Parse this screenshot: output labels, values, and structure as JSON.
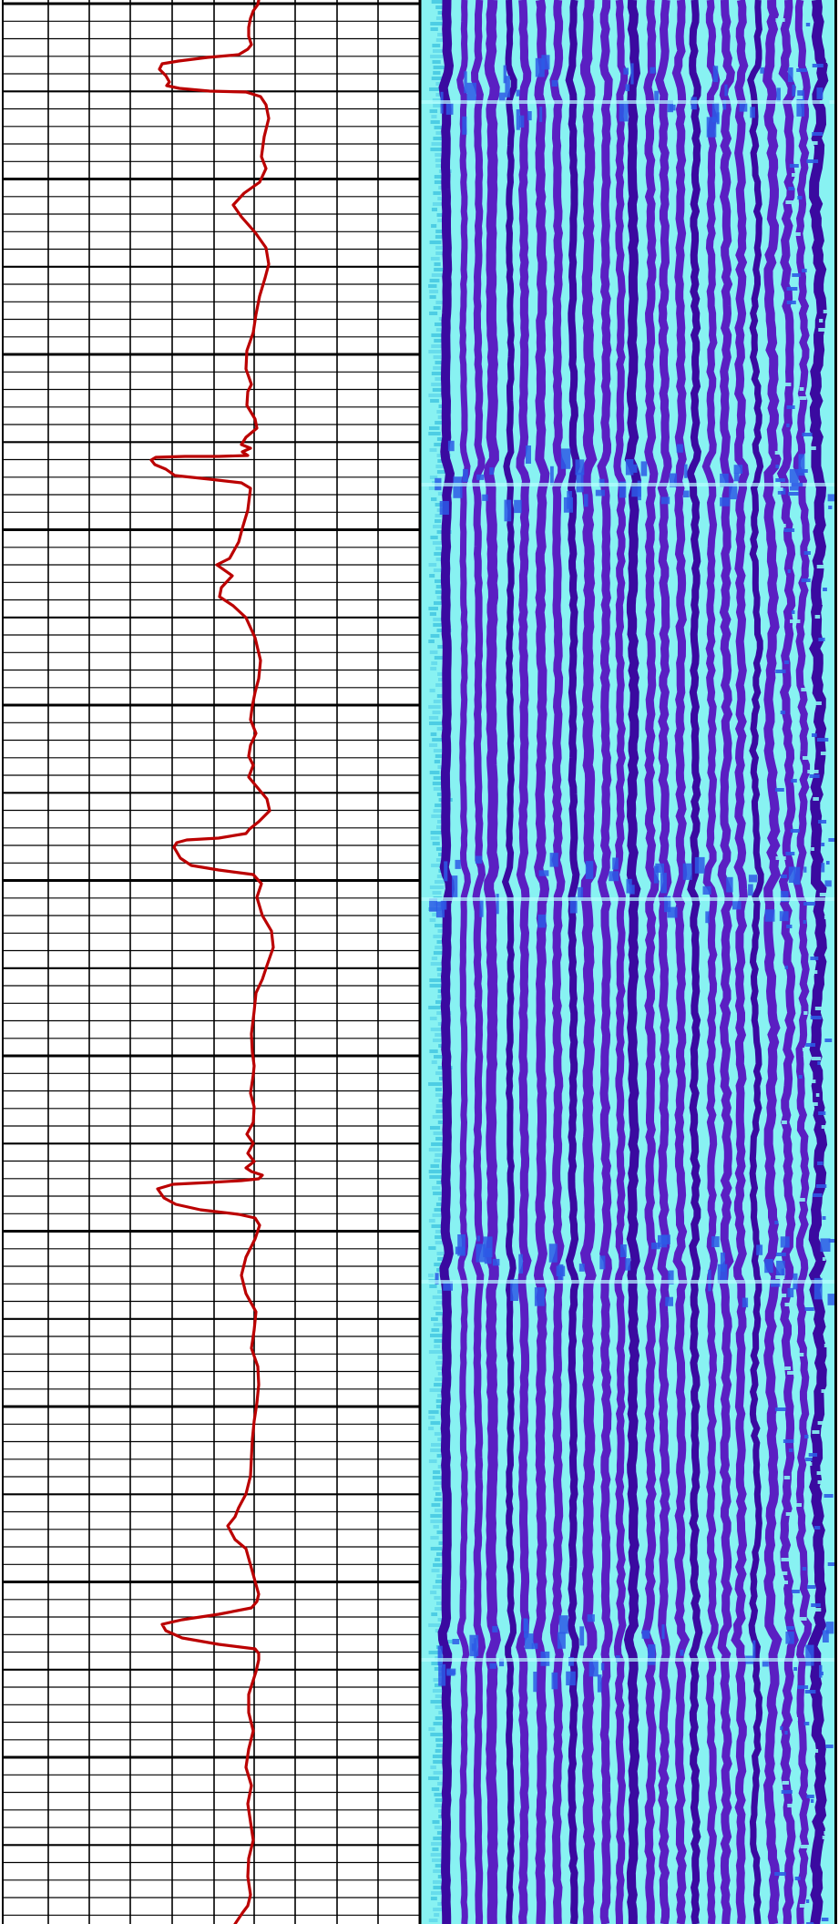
{
  "chart_data": [
    {
      "type": "line",
      "panel": "log-curve",
      "grid": true,
      "series": [
        {
          "color": "#bb0000",
          "points": [
            [
              284,
              0
            ],
            [
              283,
              5
            ],
            [
              278,
              12
            ],
            [
              275,
              20
            ],
            [
              273,
              30
            ],
            [
              273,
              40
            ],
            [
              276,
              49
            ],
            [
              272,
              54
            ],
            [
              262,
              60
            ],
            [
              228,
              63
            ],
            [
              196,
              67
            ],
            [
              178,
              70
            ],
            [
              175,
              76
            ],
            [
              182,
              83
            ],
            [
              186,
              90
            ],
            [
              183,
              94
            ],
            [
              197,
              97
            ],
            [
              230,
              100
            ],
            [
              270,
              101
            ],
            [
              286,
              106
            ],
            [
              292,
              115
            ],
            [
              295,
              130
            ],
            [
              290,
              150
            ],
            [
              287,
              172
            ],
            [
              292,
              185
            ],
            [
              285,
              200
            ],
            [
              268,
              212
            ],
            [
              256,
              225
            ],
            [
              265,
              238
            ],
            [
              280,
              255
            ],
            [
              292,
              272
            ],
            [
              295,
              290
            ],
            [
              291,
              305
            ],
            [
              285,
              325
            ],
            [
              281,
              345
            ],
            [
              278,
              365
            ],
            [
              271,
              385
            ],
            [
              270,
              405
            ],
            [
              276,
              422
            ],
            [
              272,
              430
            ],
            [
              271,
              445
            ],
            [
              280,
              460
            ],
            [
              282,
              470
            ],
            [
              270,
              480
            ],
            [
              265,
              488
            ],
            [
              275,
              492
            ],
            [
              266,
              496
            ],
            [
              272,
              500
            ],
            [
              240,
              501
            ],
            [
              203,
              501
            ],
            [
              171,
              502
            ],
            [
              166,
              505
            ],
            [
              170,
              510
            ],
            [
              182,
              515
            ],
            [
              192,
              522
            ],
            [
              230,
              526
            ],
            [
              265,
              530
            ],
            [
              275,
              536
            ],
            [
              272,
              560
            ],
            [
              266,
              580
            ],
            [
              262,
              595
            ],
            [
              252,
              613
            ],
            [
              238,
              620
            ],
            [
              255,
              632
            ],
            [
              243,
              645
            ],
            [
              241,
              655
            ],
            [
              256,
              665
            ],
            [
              270,
              678
            ],
            [
              280,
              700
            ],
            [
              286,
              725
            ],
            [
              284,
              745
            ],
            [
              280,
              760
            ],
            [
              277,
              775
            ],
            [
              275,
              790
            ],
            [
              281,
              805
            ],
            [
              275,
              818
            ],
            [
              273,
              830
            ],
            [
              278,
              840
            ],
            [
              273,
              853
            ],
            [
              283,
              865
            ],
            [
              293,
              877
            ],
            [
              296,
              890
            ],
            [
              284,
              902
            ],
            [
              274,
              910
            ],
            [
              270,
              915
            ],
            [
              240,
              920
            ],
            [
              205,
              922
            ],
            [
              194,
              925
            ],
            [
              191,
              930
            ],
            [
              198,
              942
            ],
            [
              210,
              950
            ],
            [
              240,
              955
            ],
            [
              278,
              960
            ],
            [
              287,
              970
            ],
            [
              282,
              985
            ],
            [
              288,
              1005
            ],
            [
              298,
              1022
            ],
            [
              300,
              1040
            ],
            [
              293,
              1060
            ],
            [
              288,
              1075
            ],
            [
              281,
              1090
            ],
            [
              279,
              1110
            ],
            [
              276,
              1135
            ],
            [
              277,
              1155
            ],
            [
              279,
              1170
            ],
            [
              278,
              1180
            ],
            [
              275,
              1200
            ],
            [
              279,
              1215
            ],
            [
              278,
              1232
            ],
            [
              271,
              1245
            ],
            [
              278,
              1255
            ],
            [
              272,
              1266
            ],
            [
              279,
              1275
            ],
            [
              270,
              1282
            ],
            [
              276,
              1286
            ],
            [
              288,
              1290
            ],
            [
              284,
              1294
            ],
            [
              265,
              1296
            ],
            [
              230,
              1298
            ],
            [
              190,
              1300
            ],
            [
              173,
              1305
            ],
            [
              180,
              1315
            ],
            [
              193,
              1322
            ],
            [
              220,
              1328
            ],
            [
              262,
              1333
            ],
            [
              280,
              1337
            ],
            [
              285,
              1345
            ],
            [
              280,
              1360
            ],
            [
              270,
              1380
            ],
            [
              265,
              1400
            ],
            [
              270,
              1420
            ],
            [
              281,
              1440
            ],
            [
              279,
              1460
            ],
            [
              276,
              1480
            ],
            [
              283,
              1500
            ],
            [
              284,
              1520
            ],
            [
              282,
              1540
            ],
            [
              279,
              1560
            ],
            [
              277,
              1580
            ],
            [
              276,
              1600
            ],
            [
              275,
              1620
            ],
            [
              270,
              1640
            ],
            [
              262,
              1655
            ],
            [
              258,
              1665
            ],
            [
              250,
              1675
            ],
            [
              258,
              1690
            ],
            [
              270,
              1700
            ],
            [
              284,
              1750
            ],
            [
              282,
              1758
            ],
            [
              276,
              1765
            ],
            [
              240,
              1772
            ],
            [
              200,
              1778
            ],
            [
              178,
              1783
            ],
            [
              182,
              1790
            ],
            [
              200,
              1798
            ],
            [
              240,
              1805
            ],
            [
              280,
              1810
            ],
            [
              284,
              1815
            ],
            [
              284,
              1822
            ],
            [
              281,
              1835
            ],
            [
              273,
              1860
            ],
            [
              273,
              1880
            ],
            [
              278,
              1900
            ],
            [
              273,
              1920
            ],
            [
              270,
              1940
            ],
            [
              276,
              1960
            ],
            [
              272,
              1980
            ],
            [
              275,
              2000
            ],
            [
              278,
              2020
            ],
            [
              273,
              2040
            ],
            [
              272,
              2060
            ],
            [
              275,
              2080
            ],
            [
              272,
              2092
            ],
            [
              266,
              2100
            ],
            [
              258,
              2112
            ]
          ]
        }
      ]
    },
    {
      "type": "heatmap",
      "panel": "waveform-image",
      "palette": {
        "background": "#88f2f2",
        "trace": "#5a1fc2",
        "trace_dark": "#3a0aa0",
        "highlight": "#2d5be6"
      },
      "event_depths": [
        80,
        500,
        955,
        1375,
        1790
      ]
    }
  ]
}
